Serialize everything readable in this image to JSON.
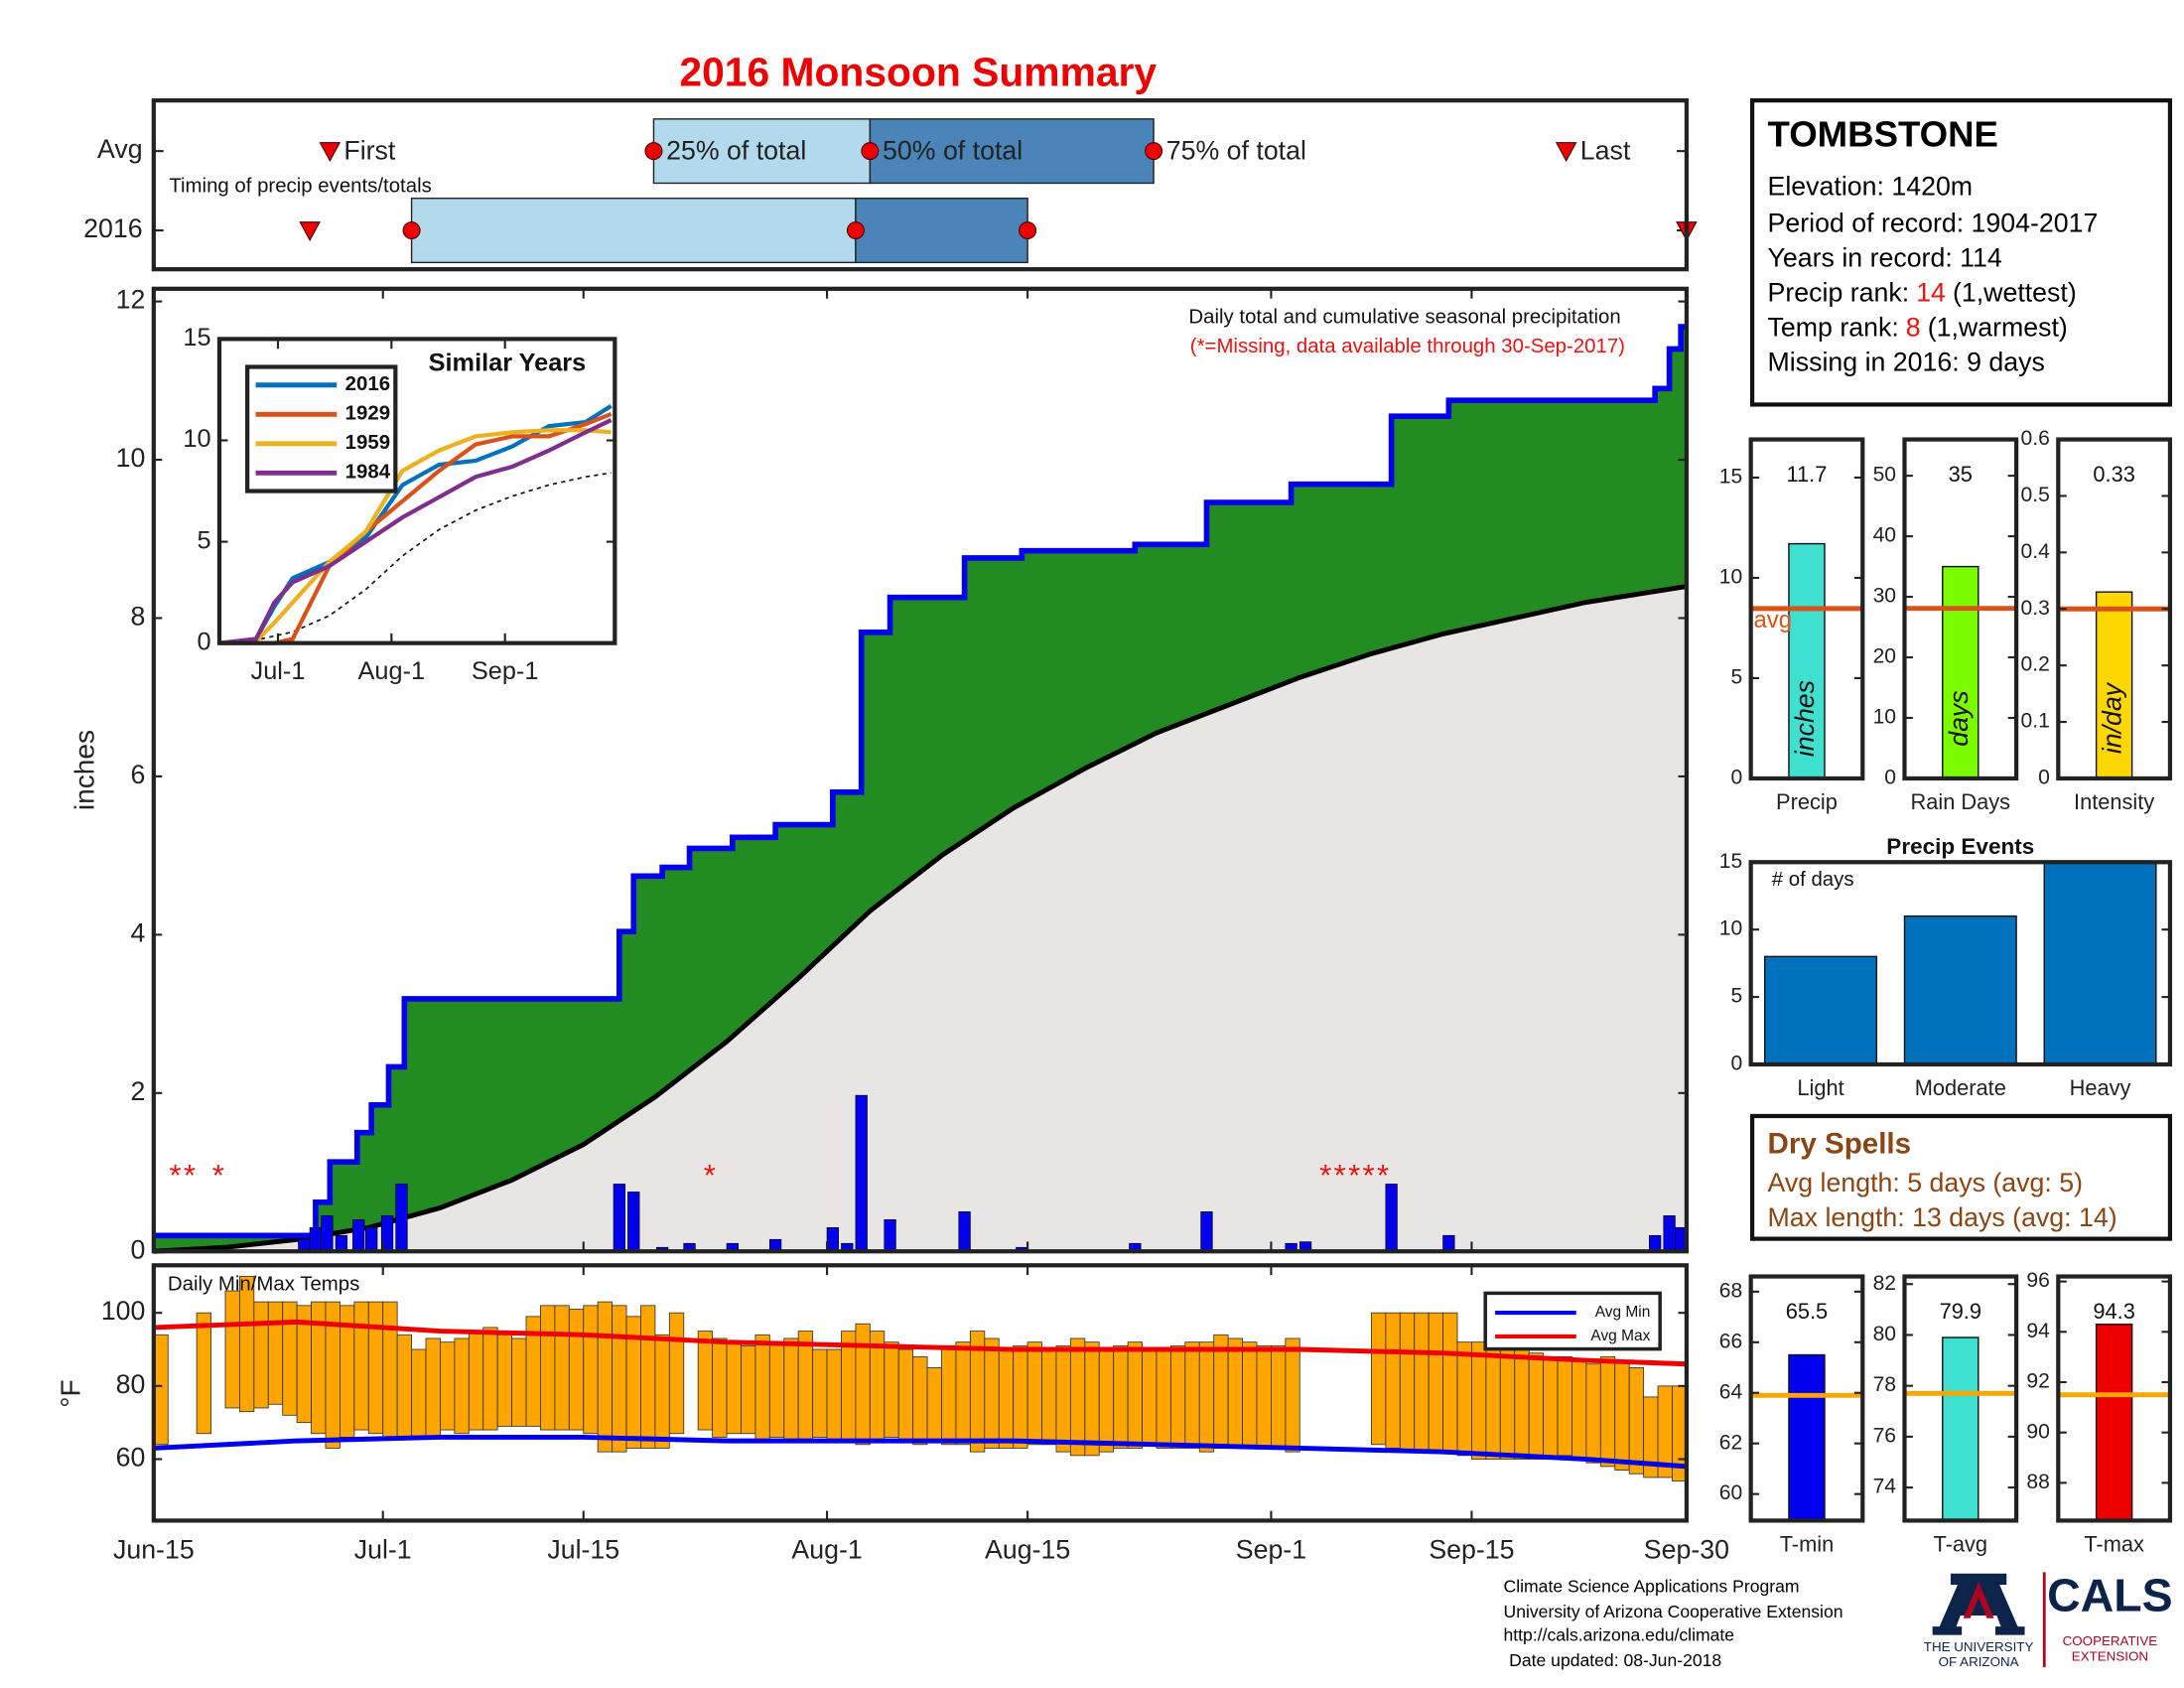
{
  "title": "2016 Monsoon Summary",
  "chart_data": [
    {
      "type": "timeline",
      "annotation": "Timing of precip events/totals",
      "event_labels": [
        "First",
        "25% of total",
        "50% of total",
        "75% of total",
        "Last"
      ],
      "xlim": [
        0,
        107
      ],
      "box_colors": [
        "#b3d9ec",
        "#4a84b8"
      ],
      "marker_color": "#ee0000",
      "series": [
        {
          "name": "Avg",
          "values": [
            12.3,
            34.9,
            50,
            69.8,
            98.6
          ]
        },
        {
          "name": "2016",
          "values": [
            10.9,
            18,
            49,
            61,
            107
          ]
        }
      ]
    },
    {
      "type": "step_area",
      "ylabel": "inches",
      "annotation": "Daily total and cumulative seasonal precipitation",
      "note": "(*=Missing, data available through 30-Sep-2017)",
      "xlim": [
        0,
        107
      ],
      "ylim": [
        0,
        12.16
      ],
      "yticks": [
        0,
        2,
        4,
        6,
        8,
        10,
        12
      ],
      "color": "#0000ee",
      "fill": "#228b22",
      "avg_fill": "#e8e6e4",
      "cumulative": {
        "x": [
          0,
          11.3,
          12.3,
          14.2,
          15.2,
          16.4,
          17.5,
          32.5,
          33.5,
          35.5,
          37.4,
          40.4,
          43.4,
          47.4,
          49.4,
          51.4,
          56.6,
          60.6,
          68.5,
          73.5,
          79.4,
          86.4,
          90.4,
          104.8,
          105.8,
          106.6
        ],
        "values": [
          0.2,
          0.62,
          1.13,
          1.5,
          1.85,
          2.33,
          3.19,
          4.04,
          4.74,
          4.85,
          5.09,
          5.23,
          5.39,
          5.8,
          7.82,
          8.26,
          8.76,
          8.85,
          8.93,
          9.46,
          9.69,
          10.55,
          10.75,
          10.9,
          11.4,
          11.68
        ]
      },
      "average": {
        "x": [
          0,
          5,
          10,
          15,
          20,
          25,
          30,
          35,
          40,
          45,
          50,
          55,
          60,
          65,
          70,
          75,
          80,
          85,
          90,
          95,
          100,
          107
        ],
        "values": [
          0,
          0.05,
          0.15,
          0.3,
          0.55,
          0.9,
          1.35,
          1.95,
          2.65,
          3.45,
          4.3,
          5.0,
          5.6,
          6.1,
          6.55,
          6.9,
          7.25,
          7.55,
          7.8,
          8.0,
          8.2,
          8.4
        ]
      },
      "daily": {
        "x": [
          10.5,
          11.3,
          12.1,
          13.1,
          14.3,
          15.2,
          16.3,
          17.3,
          32.5,
          33.5,
          35.5,
          37.4,
          40.4,
          43.4,
          47.4,
          48.4,
          49.4,
          51.4,
          56.6,
          60.6,
          68.5,
          73.5,
          79.4,
          80.4,
          86.4,
          90.4,
          104.8,
          105.8,
          106.6
        ],
        "values": [
          0.15,
          0.3,
          0.45,
          0.2,
          0.4,
          0.3,
          0.45,
          0.85,
          0.85,
          0.75,
          0.05,
          0.1,
          0.1,
          0.15,
          0.3,
          0.1,
          1.97,
          0.4,
          0.5,
          0.05,
          0.1,
          0.5,
          0.1,
          0.12,
          0.85,
          0.2,
          0.2,
          0.45,
          0.3
        ]
      },
      "missing_days": [
        1.5,
        2.5,
        4.5,
        38.8,
        81.8,
        82.8,
        83.8,
        84.8,
        85.8
      ],
      "missing_marker": "*",
      "missing_color": "#ee1111"
    },
    {
      "type": "line",
      "title": "Similar Years",
      "xlim": [
        0,
        108
      ],
      "ylim": [
        0,
        15
      ],
      "yticks": [
        0,
        5,
        10,
        15
      ],
      "xticks": [
        {
          "value": 16,
          "label": "Jul-1"
        },
        {
          "value": 47,
          "label": "Aug-1"
        },
        {
          "value": 78,
          "label": "Sep-1"
        }
      ],
      "x": [
        0,
        10,
        15,
        20,
        30,
        40,
        50,
        60,
        70,
        80,
        90,
        100,
        107
      ],
      "series": [
        {
          "name": "2016",
          "color": "#0072bd",
          "values": [
            0,
            0.2,
            1.8,
            3.2,
            4.0,
            5.2,
            7.8,
            8.8,
            9.0,
            9.7,
            10.7,
            10.9,
            11.7
          ]
        },
        {
          "name": "1929",
          "color": "#d95319",
          "values": [
            0,
            0,
            0,
            0.2,
            3.8,
            5.5,
            7,
            8.5,
            9.8,
            10.2,
            10.2,
            10.8,
            11.3
          ]
        },
        {
          "name": "1959",
          "color": "#edb120",
          "values": [
            0,
            0.1,
            1,
            2,
            4,
            5.5,
            8.5,
            9.5,
            10.2,
            10.4,
            10.5,
            10.5,
            10.4
          ]
        },
        {
          "name": "1984",
          "color": "#7e2f8e",
          "values": [
            0,
            0.2,
            2,
            3,
            3.8,
            5,
            6.2,
            7.2,
            8.2,
            8.7,
            9.5,
            10.4,
            11
          ]
        }
      ],
      "average": {
        "x": [
          0,
          10,
          20,
          30,
          40,
          50,
          60,
          70,
          80,
          90,
          100,
          107
        ],
        "values": [
          0,
          0.15,
          0.55,
          1.35,
          2.65,
          4.3,
          5.6,
          6.55,
          7.25,
          7.8,
          8.2,
          8.4
        ]
      }
    },
    {
      "type": "range_bar",
      "title": "Daily Min/Max Temps",
      "ylabel": "°F",
      "xlim": [
        0,
        107
      ],
      "ylim": [
        43.2,
        113
      ],
      "yticks": [
        60,
        80,
        100
      ],
      "color": "#ffa500",
      "xticks": [
        {
          "value": 0,
          "label": "Jun-15"
        },
        {
          "value": 16,
          "label": "Jul-1"
        },
        {
          "value": 30,
          "label": "Jul-15"
        },
        {
          "value": 47,
          "label": "Aug-1"
        },
        {
          "value": 61,
          "label": "Aug-15"
        },
        {
          "value": 78,
          "label": "Sep-1"
        },
        {
          "value": 92,
          "label": "Sep-15"
        },
        {
          "value": 107,
          "label": "Sep-30"
        }
      ],
      "x": [
        0,
        1,
        2,
        3,
        4,
        5,
        6,
        7,
        8,
        9,
        10,
        11,
        12,
        13,
        14,
        15,
        16,
        17,
        18,
        19,
        20,
        21,
        22,
        23,
        24,
        25,
        26,
        27,
        28,
        29,
        30,
        31,
        32,
        33,
        34,
        35,
        36,
        37,
        38,
        39,
        40,
        41,
        42,
        43,
        44,
        45,
        46,
        47,
        48,
        49,
        50,
        51,
        52,
        53,
        54,
        55,
        56,
        57,
        58,
        59,
        60,
        61,
        62,
        63,
        64,
        65,
        66,
        67,
        68,
        69,
        70,
        71,
        72,
        73,
        74,
        75,
        76,
        77,
        78,
        79,
        80,
        81,
        82,
        83,
        84,
        85,
        86,
        87,
        88,
        89,
        90,
        91,
        92,
        93,
        94,
        95,
        96,
        97,
        98,
        99,
        100,
        101,
        102,
        103,
        104,
        105,
        106
      ],
      "max": [
        94,
        null,
        null,
        100,
        null,
        106,
        110,
        103,
        103,
        103,
        102,
        103,
        103,
        102,
        103,
        103,
        103,
        94,
        90,
        93,
        92,
        93,
        95,
        96,
        94,
        93,
        99,
        102,
        102,
        101,
        102,
        103,
        102,
        99,
        102,
        94,
        100,
        null,
        95,
        93,
        92,
        91,
        94,
        92,
        93,
        95,
        90,
        90,
        95,
        97,
        95,
        92,
        90,
        88,
        85,
        91,
        92,
        95,
        93,
        90,
        91,
        92,
        90,
        91,
        93,
        92,
        90,
        91,
        92,
        90,
        90,
        91,
        92,
        92,
        94,
        93,
        92,
        91,
        91,
        93,
        null,
        null,
        null,
        null,
        null,
        100,
        100,
        100,
        100,
        100,
        100,
        92,
        92,
        91,
        90,
        90,
        89,
        88,
        88,
        87,
        86,
        88,
        87,
        85,
        77,
        80,
        80
      ],
      "min": [
        64,
        null,
        null,
        67,
        null,
        74,
        73,
        74,
        75,
        72,
        70,
        67,
        63,
        66,
        68,
        67,
        66,
        66,
        66,
        66,
        68,
        67,
        68,
        68,
        69,
        69,
        69,
        68,
        68,
        68,
        67,
        62,
        62,
        63,
        63,
        63,
        67,
        null,
        68,
        66,
        67,
        67,
        65,
        66,
        65,
        65,
        66,
        65,
        65,
        64,
        65,
        66,
        65,
        64,
        65,
        64,
        64,
        62,
        63,
        63,
        63,
        64,
        64,
        62,
        61,
        61,
        62,
        63,
        63,
        64,
        63,
        63,
        63,
        62,
        63,
        63,
        63,
        63,
        63,
        62,
        null,
        null,
        null,
        null,
        null,
        64,
        63,
        62,
        62,
        62,
        62,
        61,
        60,
        60,
        60,
        60,
        60,
        60,
        61,
        60,
        59,
        58,
        57,
        56,
        55,
        55,
        54
      ],
      "series": [
        {
          "name": "Avg Min",
          "color": "#0000ee",
          "x": [
            0,
            10,
            20,
            30,
            40,
            50,
            60,
            70,
            80,
            90,
            100,
            107
          ],
          "values": [
            63,
            65,
            66,
            66,
            65,
            65,
            65,
            64,
            63,
            62,
            60,
            58
          ]
        },
        {
          "name": "Avg Max",
          "color": "#ee0000",
          "x": [
            0,
            10,
            20,
            30,
            40,
            50,
            60,
            70,
            80,
            90,
            100,
            107
          ],
          "values": [
            96,
            97.5,
            95,
            94,
            92,
            91,
            90,
            90,
            90,
            89,
            87,
            86
          ]
        }
      ]
    },
    {
      "type": "bar",
      "categories": [
        "Precip"
      ],
      "values": [
        11.7
      ],
      "avg": 8.47,
      "avg_label": "avg",
      "avg_color": "#d95319",
      "unit_label": "inches",
      "color": "#40e0d0",
      "ylim": [
        0,
        16.9
      ],
      "yticks": [
        0,
        5,
        10,
        15
      ]
    },
    {
      "type": "bar",
      "categories": [
        "Rain Days"
      ],
      "values": [
        35
      ],
      "avg": 28.1,
      "avg_color": "#d95319",
      "unit_label": "days",
      "color": "#7cfc00",
      "ylim": [
        0,
        56
      ],
      "yticks": [
        0,
        10,
        20,
        30,
        40,
        50
      ]
    },
    {
      "type": "bar",
      "categories": [
        "Intensity"
      ],
      "values": [
        0.33
      ],
      "avg": 0.3,
      "avg_color": "#d95319",
      "unit_label": "in/day",
      "color": "#ffd700",
      "ylim": [
        0,
        0.6
      ],
      "yticks": [
        0,
        0.1,
        0.2,
        0.3,
        0.4,
        0.5,
        0.6
      ]
    },
    {
      "type": "bar",
      "title": "Precip Events",
      "annotation": "# of days",
      "categories": [
        "Light",
        "Moderate",
        "Heavy"
      ],
      "values": [
        8,
        11,
        15
      ],
      "color": "#0072bd",
      "ylim": [
        0,
        15
      ],
      "yticks": [
        0,
        5,
        10,
        15
      ]
    },
    {
      "type": "bar",
      "categories": [
        "T-min"
      ],
      "values": [
        65.5
      ],
      "avg": 63.9,
      "avg_color": "#ffa500",
      "color": "#0000ee",
      "ylim": [
        58.95,
        68.6
      ],
      "yticks": [
        60,
        62,
        64,
        66,
        68
      ]
    },
    {
      "type": "bar",
      "categories": [
        "T-avg"
      ],
      "values": [
        79.9
      ],
      "avg": 77.7,
      "avg_color": "#ffa500",
      "color": "#40e0d0",
      "ylim": [
        72.7,
        82.3
      ],
      "yticks": [
        74,
        76,
        78,
        80,
        82
      ]
    },
    {
      "type": "bar",
      "categories": [
        "T-max"
      ],
      "values": [
        94.3
      ],
      "avg": 91.5,
      "avg_color": "#ffa500",
      "color": "#ee0000",
      "ylim": [
        86.5,
        96.2
      ],
      "yticks": [
        88,
        90,
        92,
        94,
        96
      ]
    }
  ],
  "station": {
    "name": "TOMBSTONE",
    "elevation": "Elevation: 1420m",
    "period": "Period of record: 1904-2017",
    "years": "Years in record: 114",
    "precip_rank": {
      "label": "Precip rank:",
      "value": 14,
      "note": "(1,wettest)"
    },
    "temp_rank": {
      "label": "Temp rank:",
      "value": 8,
      "note": "(1,warmest)"
    },
    "missing": "Missing in 2016: 9 days"
  },
  "dry_spells": {
    "title": "Dry Spells",
    "avg": "Avg length: 5 days (avg: 5)",
    "max": "Max length: 13 days (avg: 14)"
  },
  "footer": {
    "lines": [
      "Climate Science Applications Program",
      "University of Arizona Cooperative Extension",
      "http://cals.arizona.edu/climate",
      "Date updated: 08-Jun-2018"
    ]
  },
  "logo": {
    "university": [
      "THE UNIVERSITY",
      "OF ARIZONA"
    ],
    "cals": "CALS",
    "extension": [
      "COOPERATIVE",
      "EXTENSION"
    ]
  }
}
